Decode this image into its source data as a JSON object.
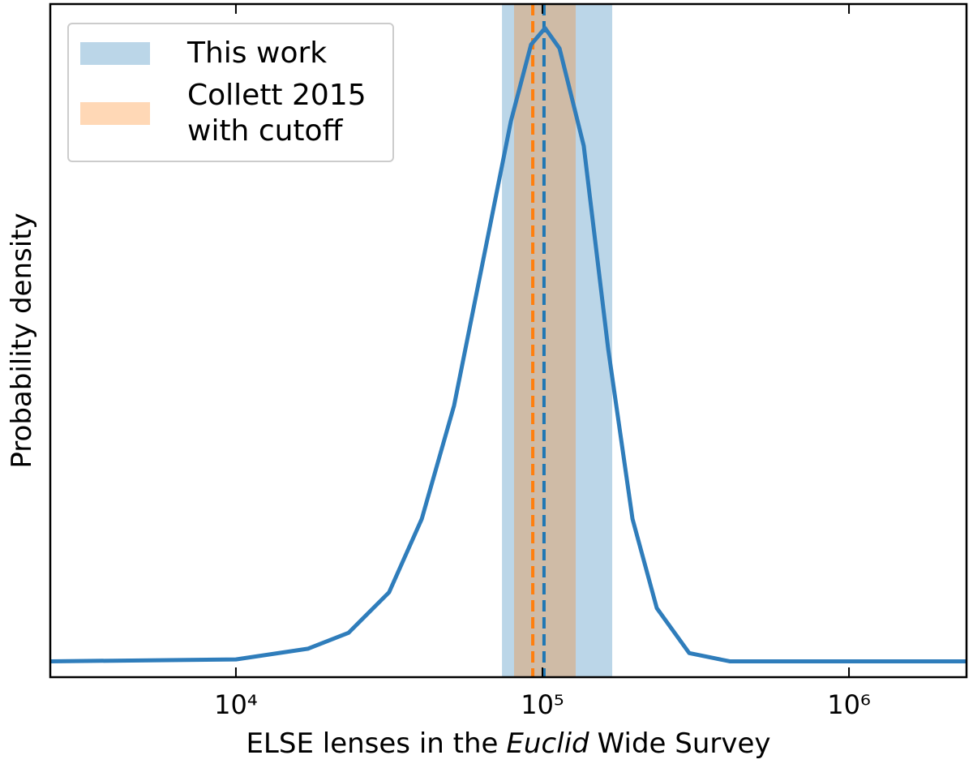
{
  "chart_data": {
    "type": "line",
    "xscale": "log",
    "xlabel": [
      "ELSE lenses in the",
      "Euclid",
      "Wide Survey"
    ],
    "xlabel_italic": 1,
    "ylabel": "Probability density",
    "xlim": [
      2480,
      2418000
    ],
    "ylim": [
      -0.025,
      1.038
    ],
    "xticks": [
      {
        "value": 10000,
        "label": "10⁴"
      },
      {
        "value": 100000,
        "label": "10⁵"
      },
      {
        "value": 1000000,
        "label": "10⁶"
      }
    ],
    "legend": "upper left",
    "curve": {
      "color": "#2f7dbb",
      "x": [
        2480,
        10000,
        17200,
        23300,
        31600,
        40400,
        51500,
        65700,
        78900,
        91800,
        102000,
        113700,
        136400,
        163800,
        196700,
        236100,
        301200,
        408300,
        2418000
      ],
      "values": [
        0,
        0.003,
        0.02,
        0.045,
        0.109,
        0.225,
        0.404,
        0.66,
        0.853,
        0.974,
        1,
        0.968,
        0.814,
        0.494,
        0.225,
        0.084,
        0.013,
        0,
        0
      ]
    },
    "bands": [
      {
        "name": "This work",
        "color": "#1f77b4",
        "range": [
          73800,
          168900
        ],
        "median": 101200
      },
      {
        "name": "Collett 2015 with cutoff",
        "color": "#ff7f0e",
        "range": [
          80800,
          128400
        ],
        "median": 93000
      }
    ]
  }
}
